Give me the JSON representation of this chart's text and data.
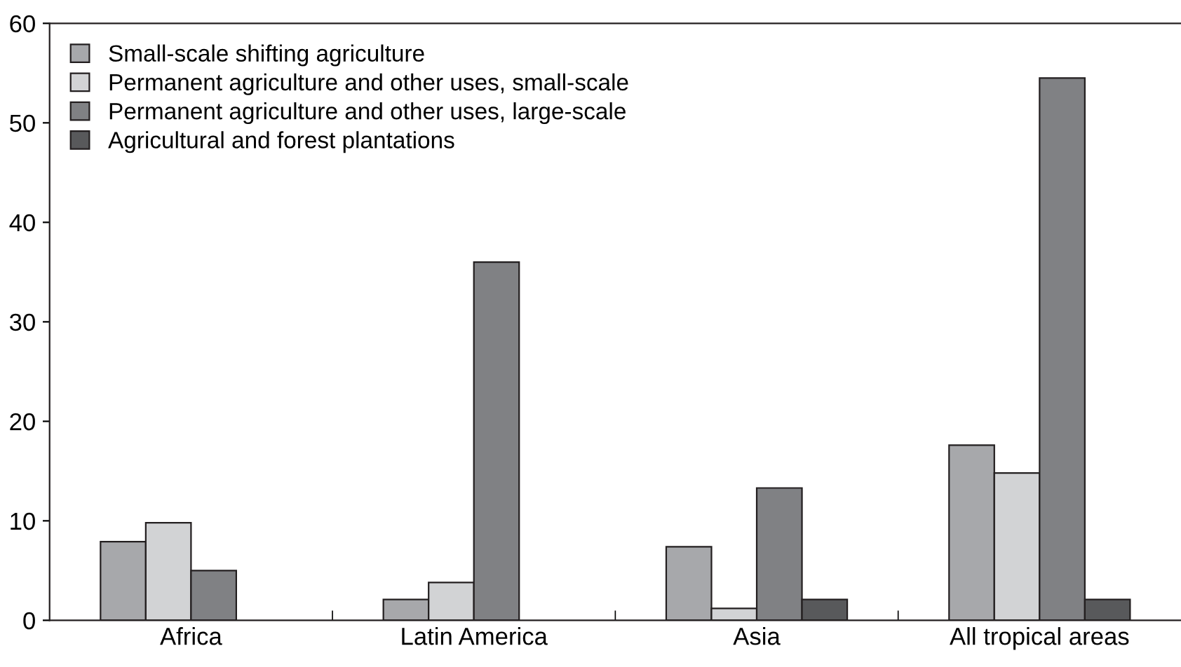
{
  "chart_data": {
    "type": "bar",
    "categories": [
      "Africa",
      "Latin America",
      "Asia",
      "All tropical areas"
    ],
    "series": [
      {
        "name": "Small-scale shifting agriculture",
        "color": "#a7a8ab",
        "values": [
          7.9,
          2.1,
          7.4,
          17.6
        ]
      },
      {
        "name": "Permanent agriculture and other uses, small-scale",
        "color": "#d2d3d5",
        "values": [
          9.8,
          3.8,
          1.2,
          14.8
        ]
      },
      {
        "name": "Permanent agriculture and other uses, large-scale",
        "color": "#808184",
        "values": [
          5.0,
          36.0,
          13.3,
          54.5
        ]
      },
      {
        "name": "Agricultural and forest plantations",
        "color": "#58595b",
        "values": [
          null,
          null,
          2.1,
          2.1
        ]
      }
    ],
    "ylim": [
      0,
      60
    ],
    "yticks": [
      0,
      10,
      20,
      30,
      40,
      50,
      60
    ],
    "grid": false,
    "legend": "top left"
  }
}
